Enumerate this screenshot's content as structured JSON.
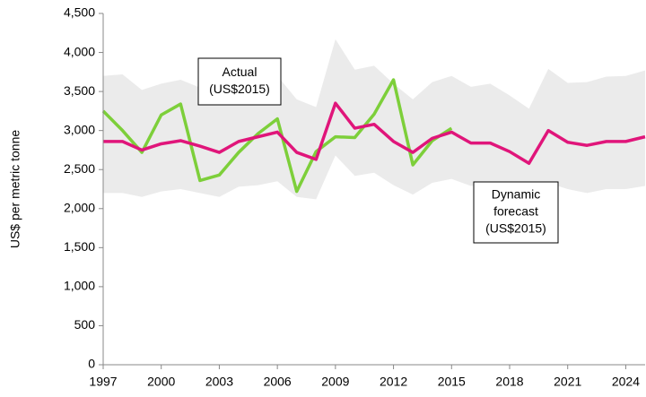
{
  "chart_data": {
    "type": "line",
    "ylabel": "US$ per metric tonne",
    "x": [
      1997,
      1998,
      1999,
      2000,
      2001,
      2002,
      2003,
      2004,
      2005,
      2006,
      2007,
      2008,
      2009,
      2010,
      2011,
      2012,
      2013,
      2014,
      2015,
      2016,
      2017,
      2018,
      2019,
      2020,
      2021,
      2022,
      2023,
      2024,
      2025
    ],
    "xlim": [
      1997,
      2025
    ],
    "xticks": [
      1997,
      2000,
      2003,
      2006,
      2009,
      2012,
      2015,
      2018,
      2021,
      2024
    ],
    "ylim": [
      0,
      4500
    ],
    "yticks": [
      {
        "value": 0,
        "label": "0"
      },
      {
        "value": 500,
        "label": "500"
      },
      {
        "value": 1000,
        "label": "1,000"
      },
      {
        "value": 1500,
        "label": "1,500"
      },
      {
        "value": 2000,
        "label": "2,000"
      },
      {
        "value": 2500,
        "label": "2,500"
      },
      {
        "value": 3000,
        "label": "3,000"
      },
      {
        "value": 3500,
        "label": "3,500"
      },
      {
        "value": 4000,
        "label": "4,000"
      },
      {
        "value": 4500,
        "label": "4,500"
      }
    ],
    "band": {
      "color": "#ebebeb",
      "upper": [
        3700,
        3720,
        3520,
        3600,
        3650,
        3550,
        3500,
        3600,
        3650,
        3700,
        3400,
        3300,
        4170,
        3780,
        3830,
        3600,
        3400,
        3620,
        3700,
        3560,
        3600,
        3450,
        3280,
        3790,
        3610,
        3620,
        3690,
        3700,
        3770
      ],
      "lower": [
        2200,
        2200,
        2150,
        2220,
        2250,
        2200,
        2150,
        2280,
        2300,
        2350,
        2150,
        2120,
        2680,
        2420,
        2460,
        2300,
        2180,
        2330,
        2380,
        2290,
        2310,
        2250,
        2180,
        2330,
        2250,
        2200,
        2250,
        2250,
        2290
      ]
    },
    "series": [
      {
        "color": "#7dcf3a",
        "values": [
          3250,
          3000,
          2720,
          3200,
          3340,
          2360,
          2430,
          2720,
          2960,
          3150,
          2220,
          2730,
          2920,
          2910,
          3210,
          3650,
          2560,
          2870,
          3030,
          null,
          null,
          null,
          null,
          null,
          null,
          null,
          null,
          null,
          null
        ]
      },
      {
        "color": "#e0157a",
        "values": [
          2860,
          2860,
          2750,
          2830,
          2870,
          2800,
          2720,
          2860,
          2920,
          2980,
          2720,
          2630,
          3350,
          3030,
          3080,
          2860,
          2720,
          2900,
          2980,
          2840,
          2840,
          2730,
          2580,
          3000,
          2850,
          2810,
          2860,
          2860,
          2920
        ]
      }
    ],
    "annotations": [
      {
        "lines": [
          "Actual",
          "(US$2015)"
        ]
      },
      {
        "lines": [
          "Dynamic",
          "forecast",
          "(US$2015)"
        ]
      }
    ]
  }
}
